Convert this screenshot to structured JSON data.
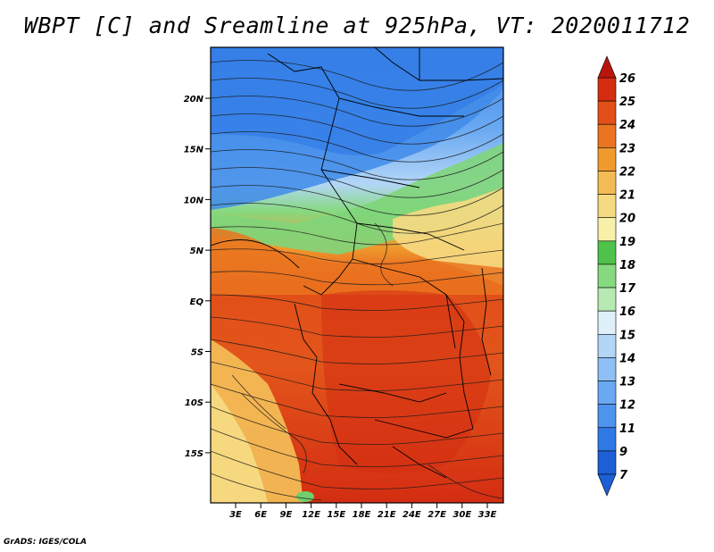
{
  "title": "WBPT [C] and Sreamline at 925hPa, VT: 2020011712",
  "footer": "GrADS: IGES/COLA",
  "map": {
    "lat_labels": [
      "20N",
      "15N",
      "10N",
      "5N",
      "EQ",
      "5S",
      "10S",
      "15S"
    ],
    "lon_labels": [
      "3E",
      "6E",
      "9E",
      "12E",
      "15E",
      "18E",
      "21E",
      "24E",
      "27E",
      "30E",
      "33E"
    ],
    "colorbar": {
      "labels": [
        "7",
        "9",
        "11",
        "12",
        "13",
        "14",
        "15",
        "16",
        "17",
        "18",
        "19",
        "20",
        "21",
        "22",
        "23",
        "24",
        "25",
        "26"
      ],
      "colors": [
        "#1c5fd6",
        "#2f78e6",
        "#4e93ee",
        "#6aa9f2",
        "#8ec0f5",
        "#b3d6f7",
        "#dff0fa",
        "#b6eab2",
        "#86d97f",
        "#4ec24a",
        "#f7f0a8",
        "#f6da82",
        "#f3bb55",
        "#f09a2d",
        "#ea7420",
        "#e24f19",
        "#d42d12",
        "#b8160c"
      ]
    }
  }
}
